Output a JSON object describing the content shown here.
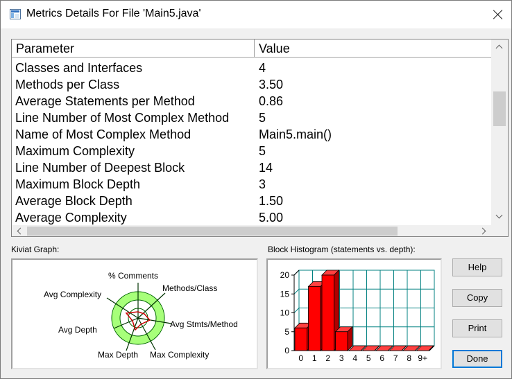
{
  "window": {
    "title": "Metrics Details For File 'Main5.java'",
    "icon": "metrics-window-icon",
    "close_icon": "close-icon"
  },
  "table": {
    "columns": [
      "Parameter",
      "Value"
    ],
    "rows": [
      {
        "param": "Classes and Interfaces",
        "value": "4"
      },
      {
        "param": "Methods per Class",
        "value": "3.50"
      },
      {
        "param": "Average Statements per Method",
        "value": "0.86"
      },
      {
        "param": "Line Number of Most Complex Method",
        "value": "5"
      },
      {
        "param": "Name of Most Complex Method",
        "value": "Main5.main()"
      },
      {
        "param": "Maximum Complexity",
        "value": "5"
      },
      {
        "param": "Line Number of Deepest Block",
        "value": "14"
      },
      {
        "param": "Maximum Block Depth",
        "value": "3"
      },
      {
        "param": "Average Block Depth",
        "value": "1.50"
      },
      {
        "param": "Average Complexity",
        "value": "5.00"
      }
    ]
  },
  "kiviat": {
    "label": "Kiviat Graph:",
    "axes": [
      "% Comments",
      "Methods/Class",
      "Avg Stmts/Method",
      "Max Complexity",
      "Max Depth",
      "Avg Depth",
      "Avg Complexity"
    ]
  },
  "histogram": {
    "label": "Block Histogram (statements vs. depth):",
    "y_ticks": [
      "0",
      "5",
      "10",
      "15",
      "20"
    ],
    "categories": [
      "0",
      "1",
      "2",
      "3",
      "4",
      "5",
      "6",
      "7",
      "8",
      "9+"
    ],
    "values": [
      6,
      17,
      20,
      5,
      0,
      0,
      0,
      0,
      0,
      0
    ],
    "ymax": 20,
    "bar_color": "#ff0000",
    "grid_color": "#008080"
  },
  "buttons": {
    "help": "Help",
    "copy": "Copy",
    "print": "Print",
    "done": "Done"
  }
}
